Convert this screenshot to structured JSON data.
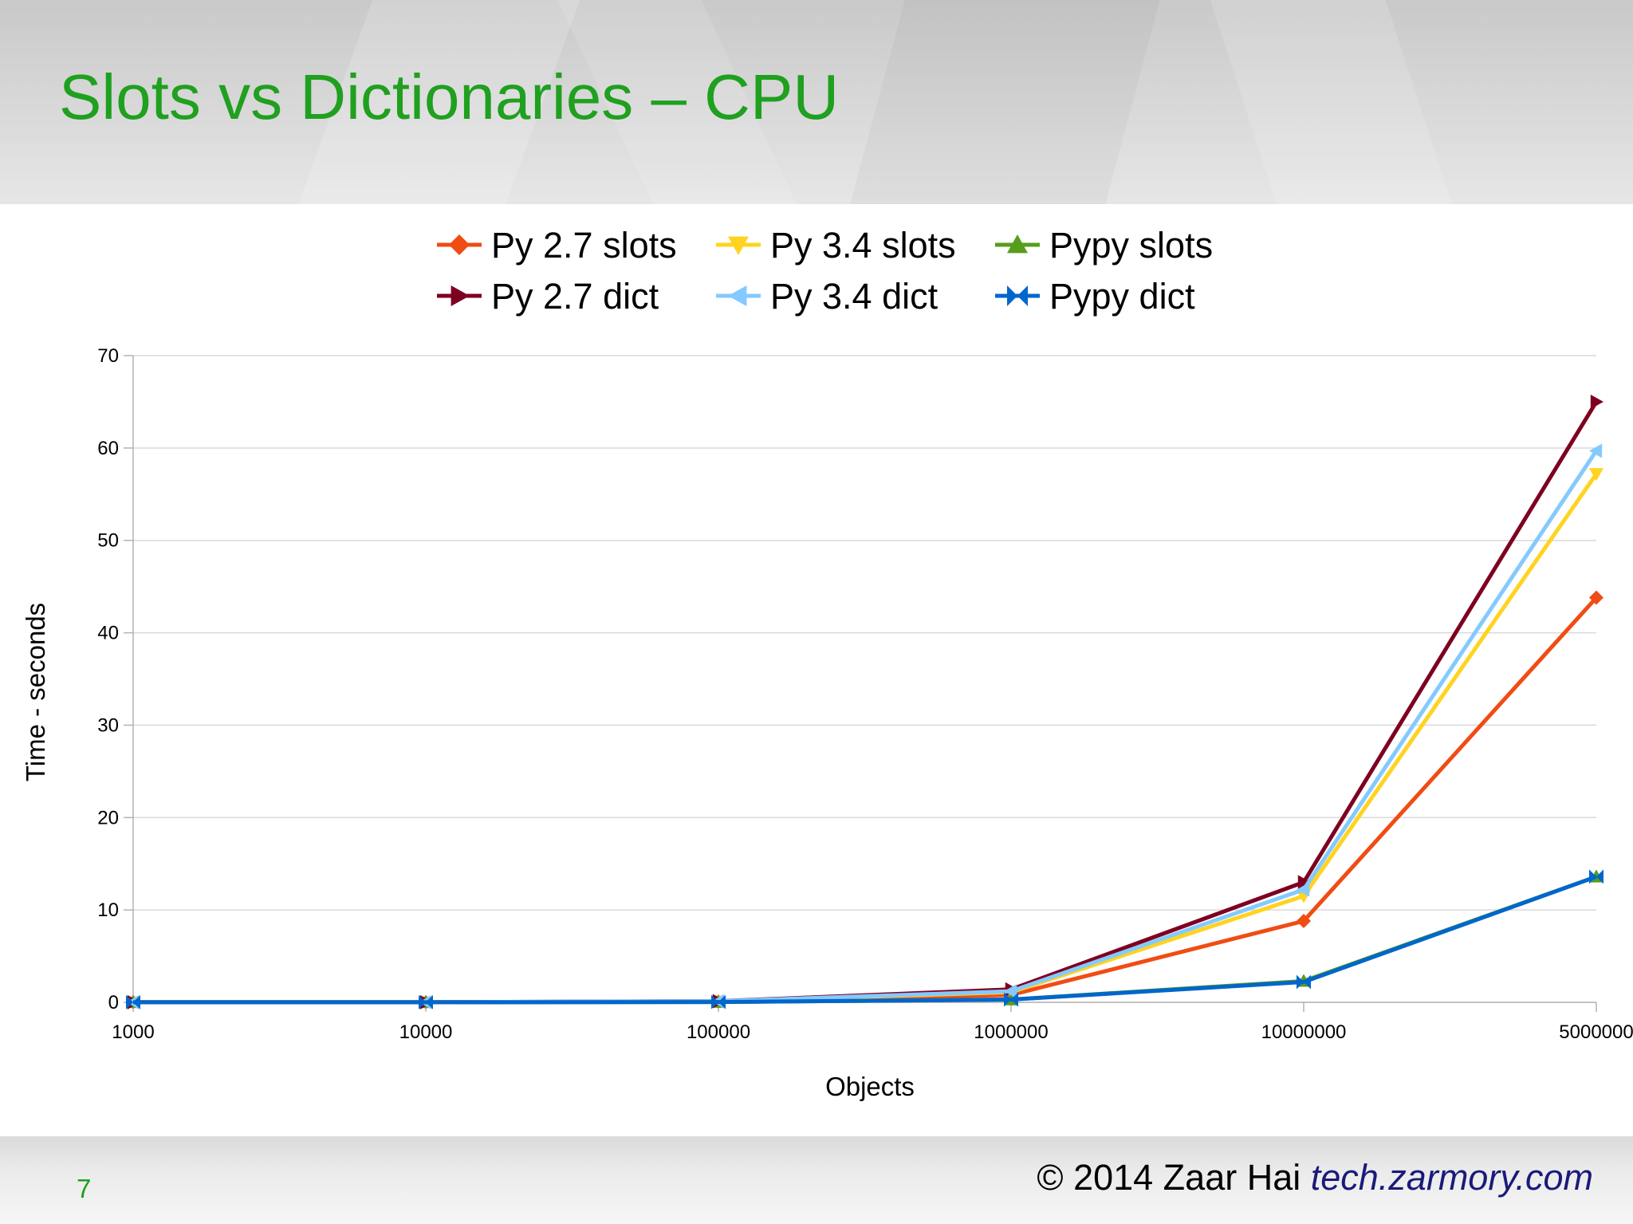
{
  "slide": {
    "title": "Slots vs Dictionaries – CPU",
    "page_number": "7",
    "copyright_text": "© 2014 Zaar Hai",
    "copyright_site": "tech.zarmory.com",
    "title_color": "#1fa01f"
  },
  "chart_data": {
    "type": "line",
    "title": "",
    "xlabel": "Objects",
    "ylabel": "Time - seconds",
    "categories": [
      "1000",
      "10000",
      "100000",
      "1000000",
      "10000000",
      "5000000"
    ],
    "ylim": [
      0,
      70
    ],
    "yticks": [
      0,
      10,
      20,
      30,
      40,
      50,
      60,
      70
    ],
    "grid": true,
    "legend_position": "top",
    "series": [
      {
        "name": "Py 2.7 slots",
        "color": "#f04c14",
        "marker": "diamond",
        "values": [
          0.01,
          0.01,
          0.08,
          0.8,
          8.8,
          43.8
        ]
      },
      {
        "name": "Py 3.4 slots",
        "color": "#ffd320",
        "marker": "triangle-down",
        "values": [
          0.01,
          0.01,
          0.1,
          1.1,
          11.5,
          57.2
        ]
      },
      {
        "name": "Pypy slots",
        "color": "#579d1c",
        "marker": "triangle-up",
        "values": [
          0.01,
          0.01,
          0.03,
          0.3,
          2.3,
          13.6
        ]
      },
      {
        "name": "Py 2.7 dict",
        "color": "#7e0021",
        "marker": "triangle-right",
        "values": [
          0.01,
          0.01,
          0.13,
          1.4,
          13.0,
          65.0
        ]
      },
      {
        "name": "Py 3.4 dict",
        "color": "#83caff",
        "marker": "triangle-left",
        "values": [
          0.01,
          0.01,
          0.12,
          1.2,
          12.2,
          59.7
        ]
      },
      {
        "name": "Pypy dict",
        "color": "#0066cc",
        "marker": "bowtie",
        "values": [
          0.01,
          0.01,
          0.03,
          0.3,
          2.2,
          13.6
        ]
      }
    ]
  }
}
